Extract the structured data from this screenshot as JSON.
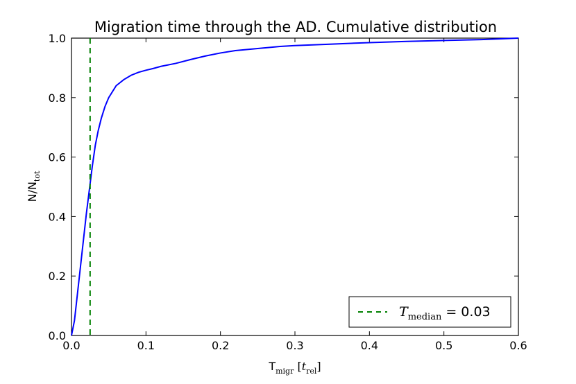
{
  "chart_data": {
    "type": "line",
    "title": "Migration time through the AD. Cumulative distribution",
    "xlabel": {
      "main": "T",
      "sub": "migr",
      "unit_open": " [",
      "unit_var": "t",
      "unit_sub": "rel",
      "unit_close": "]"
    },
    "ylabel": {
      "main": "N/N",
      "sub": "tot"
    },
    "xlim": [
      0.0,
      0.6
    ],
    "ylim": [
      0.0,
      1.0
    ],
    "x_ticks": [
      0.0,
      0.1,
      0.2,
      0.3,
      0.4,
      0.5,
      0.6
    ],
    "x_tick_labels": [
      "0.0",
      "0.1",
      "0.2",
      "0.3",
      "0.4",
      "0.5",
      "0.6"
    ],
    "y_ticks": [
      0.0,
      0.2,
      0.4,
      0.6,
      0.8,
      1.0
    ],
    "y_tick_labels": [
      "0.0",
      "0.2",
      "0.4",
      "0.6",
      "0.8",
      "1.0"
    ],
    "grid": false,
    "legend_position": "lower-right",
    "series": [
      {
        "color": "#0000ff",
        "style": "solid",
        "x": [
          0.0,
          0.004,
          0.008,
          0.012,
          0.016,
          0.02,
          0.024,
          0.028,
          0.032,
          0.036,
          0.04,
          0.045,
          0.05,
          0.055,
          0.06,
          0.065,
          0.07,
          0.08,
          0.09,
          0.1,
          0.11,
          0.12,
          0.14,
          0.16,
          0.18,
          0.2,
          0.22,
          0.25,
          0.28,
          0.3,
          0.35,
          0.4,
          0.45,
          0.5,
          0.55,
          0.58,
          0.6
        ],
        "y": [
          0.0,
          0.05,
          0.14,
          0.23,
          0.32,
          0.41,
          0.49,
          0.57,
          0.64,
          0.69,
          0.73,
          0.77,
          0.8,
          0.82,
          0.84,
          0.85,
          0.86,
          0.875,
          0.885,
          0.892,
          0.898,
          0.905,
          0.915,
          0.928,
          0.94,
          0.95,
          0.958,
          0.965,
          0.972,
          0.975,
          0.98,
          0.985,
          0.989,
          0.992,
          0.995,
          0.998,
          1.0
        ]
      },
      {
        "name": "T_median = 0.03",
        "color": "#008000",
        "style": "dashed",
        "vertical_line_x": 0.025
      }
    ],
    "legend": {
      "var": "T",
      "sub": "median",
      "rest": " = 0.03"
    }
  }
}
